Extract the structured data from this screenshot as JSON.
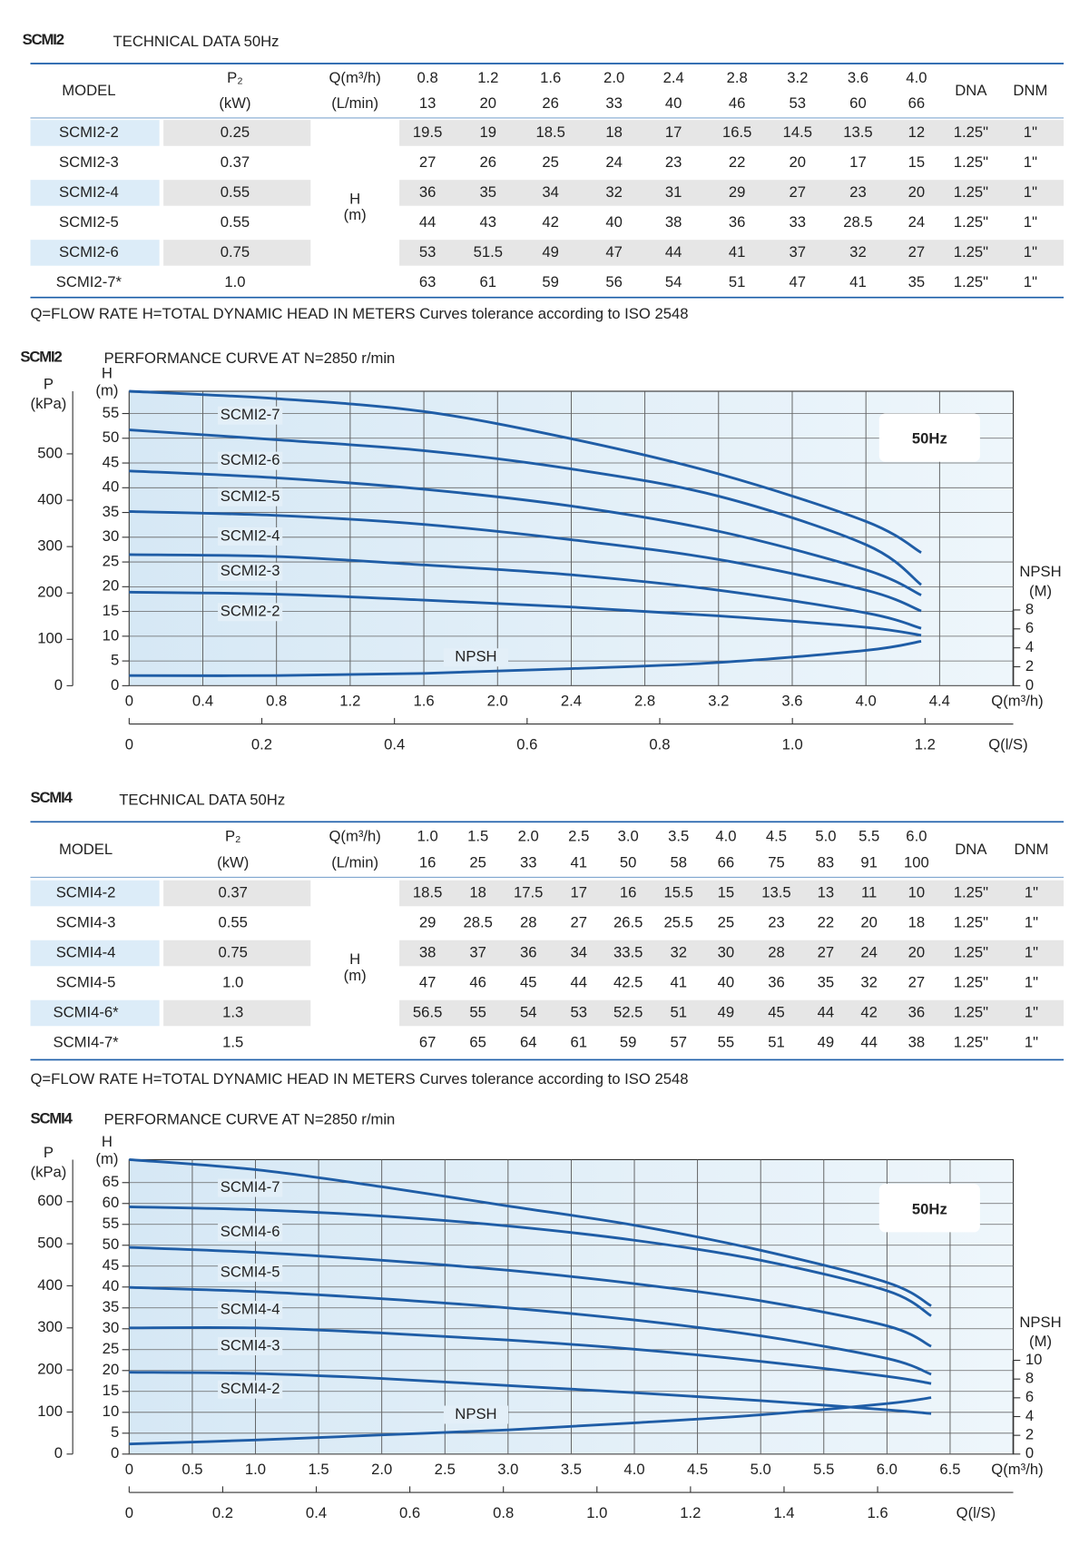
{
  "tables": [
    {
      "title": "SCMI2",
      "subtitle": "TECHNICAL DATA 50Hz",
      "headers": {
        "model": "MODEL",
        "p2": "P₂",
        "p2_unit": "(kW)",
        "q": "Q(m³/h)",
        "q_alt": "(L/min)",
        "h": "H",
        "h_unit": "(m)",
        "dna": "DNA",
        "dnm": "DNM"
      },
      "flow_m3h": [
        "0.8",
        "1.2",
        "1.6",
        "2.0",
        "2.4",
        "2.8",
        "3.2",
        "3.6",
        "4.0"
      ],
      "flow_lmin": [
        "13",
        "20",
        "26",
        "33",
        "40",
        "46",
        "53",
        "60",
        "66"
      ],
      "rows": [
        {
          "model": "SCMI2-2",
          "p2": "0.25",
          "head": [
            "19.5",
            "19",
            "18.5",
            "18",
            "17",
            "16.5",
            "14.5",
            "13.5",
            "12"
          ],
          "dna": "1.25\"",
          "dnm": "1\""
        },
        {
          "model": "SCMI2-3",
          "p2": "0.37",
          "head": [
            "27",
            "26",
            "25",
            "24",
            "23",
            "22",
            "20",
            "17",
            "15"
          ],
          "dna": "1.25\"",
          "dnm": "1\""
        },
        {
          "model": "SCMI2-4",
          "p2": "0.55",
          "head": [
            "36",
            "35",
            "34",
            "32",
            "31",
            "29",
            "27",
            "23",
            "20"
          ],
          "dna": "1.25\"",
          "dnm": "1\""
        },
        {
          "model": "SCMI2-5",
          "p2": "0.55",
          "head": [
            "44",
            "43",
            "42",
            "40",
            "38",
            "36",
            "33",
            "28.5",
            "24"
          ],
          "dna": "1.25\"",
          "dnm": "1\""
        },
        {
          "model": "SCMI2-6",
          "p2": "0.75",
          "head": [
            "53",
            "51.5",
            "49",
            "47",
            "44",
            "41",
            "37",
            "32",
            "27"
          ],
          "dna": "1.25\"",
          "dnm": "1\""
        },
        {
          "model": "SCMI2-7*",
          "p2": "1.0",
          "head": [
            "63",
            "61",
            "59",
            "56",
            "54",
            "51",
            "47",
            "41",
            "35"
          ],
          "dna": "1.25\"",
          "dnm": "1\""
        }
      ],
      "note": "Q=FLOW RATE H=TOTAL DYNAMIC HEAD IN METERS  Curves tolerance according to ISO 2548"
    },
    {
      "title": "SCMI4",
      "subtitle": "TECHNICAL DATA 50Hz",
      "headers": {
        "model": "MODEL",
        "p2": "P₂",
        "p2_unit": "(kW)",
        "q": "Q(m³/h)",
        "q_alt": "(L/min)",
        "h": "H",
        "h_unit": "(m)",
        "dna": "DNA",
        "dnm": "DNM"
      },
      "flow_m3h": [
        "1.0",
        "1.5",
        "2.0",
        "2.5",
        "3.0",
        "3.5",
        "4.0",
        "4.5",
        "5.0",
        "5.5",
        "6.0"
      ],
      "flow_lmin": [
        "16",
        "25",
        "33",
        "41",
        "50",
        "58",
        "66",
        "75",
        "83",
        "91",
        "100"
      ],
      "rows": [
        {
          "model": "SCMI4-2",
          "p2": "0.37",
          "head": [
            "18.5",
            "18",
            "17.5",
            "17",
            "16",
            "15.5",
            "15",
            "13.5",
            "13",
            "11",
            "10"
          ],
          "dna": "1.25\"",
          "dnm": "1\""
        },
        {
          "model": "SCMI4-3",
          "p2": "0.55",
          "head": [
            "29",
            "28.5",
            "28",
            "27",
            "26.5",
            "25.5",
            "25",
            "23",
            "22",
            "20",
            "18"
          ],
          "dna": "1.25\"",
          "dnm": "1\""
        },
        {
          "model": "SCMI4-4",
          "p2": "0.75",
          "head": [
            "38",
            "37",
            "36",
            "34",
            "33.5",
            "32",
            "30",
            "28",
            "27",
            "24",
            "20"
          ],
          "dna": "1.25\"",
          "dnm": "1\""
        },
        {
          "model": "SCMI4-5",
          "p2": "1.0",
          "head": [
            "47",
            "46",
            "45",
            "44",
            "42.5",
            "41",
            "40",
            "36",
            "35",
            "32",
            "27"
          ],
          "dna": "1.25\"",
          "dnm": "1\""
        },
        {
          "model": "SCMI4-6*",
          "p2": "1.3",
          "head": [
            "56.5",
            "55",
            "54",
            "53",
            "52.5",
            "51",
            "49",
            "45",
            "44",
            "42",
            "36"
          ],
          "dna": "1.25\"",
          "dnm": "1\""
        },
        {
          "model": "SCMI4-7*",
          "p2": "1.5",
          "head": [
            "67",
            "65",
            "64",
            "61",
            "59",
            "57",
            "55",
            "51",
            "49",
            "44",
            "38"
          ],
          "dna": "1.25\"",
          "dnm": "1\""
        }
      ],
      "note": "Q=FLOW RATE H=TOTAL DYNAMIC HEAD IN METERS  Curves tolerance according to ISO 2548"
    }
  ],
  "chart_data": [
    {
      "type": "line",
      "title": "SCMI2",
      "subtitle": "PERFORMANCE CURVE AT N=2850  r/min",
      "badge": "50Hz",
      "grid": true,
      "x": [
        0,
        0.8,
        1.6,
        2.4,
        3.2,
        4.0,
        4.3
      ],
      "xlim": [
        0,
        4.8
      ],
      "xticks": [
        0,
        0.4,
        0.8,
        1.2,
        1.6,
        {
          "value": 2,
          "label": "2.0"
        },
        2.4,
        2.8,
        3.2,
        3.6,
        {
          "value": 4,
          "label": "4.0"
        },
        4.4
      ],
      "xlabel": "Q(m³/h)",
      "x2lim": [
        0,
        1.333
      ],
      "x2ticks": [
        0,
        0.2,
        0.4,
        0.6,
        0.8,
        {
          "value": 1,
          "label": "1.0"
        },
        1.2
      ],
      "x2label": "Q(l/S)",
      "ylabel": "H",
      "yunit": "(m)",
      "ylim": [
        0,
        59.5
      ],
      "yticks": [
        0,
        5,
        10,
        15,
        20,
        25,
        30,
        35,
        40,
        45,
        50,
        55
      ],
      "plabel": "P",
      "punit": "(kPa)",
      "plim": [
        0,
        635
      ],
      "pticks": [
        0,
        100,
        200,
        300,
        400,
        500
      ],
      "npsh_label": "NPSH",
      "npsh_unit": "(M)",
      "npsh_lim": [
        0,
        31.1
      ],
      "npsh_ticks": [
        0,
        2,
        4,
        6,
        8
      ],
      "series": [
        {
          "name": "SCMI2-7",
          "color": "#1f5da6",
          "values": [
            59.5,
            58,
            55.4,
            49.9,
            42.8,
            33.2,
            26.9
          ]
        },
        {
          "name": "SCMI2-6",
          "color": "#1f5da6",
          "values": [
            51.7,
            49.7,
            47.5,
            43.8,
            38.3,
            28.5,
            20.4
          ]
        },
        {
          "name": "SCMI2-5",
          "color": "#1f5da6",
          "values": [
            43.4,
            42,
            39.7,
            36.3,
            31.2,
            23.4,
            18.3
          ]
        },
        {
          "name": "SCMI2-4",
          "color": "#1f5da6",
          "values": [
            35.2,
            34.4,
            32.6,
            29.5,
            25.5,
            19.3,
            15.1
          ]
        },
        {
          "name": "SCMI2-3",
          "color": "#1f5da6",
          "values": [
            26.5,
            26.1,
            24.4,
            22.4,
            19.3,
            14.7,
            11.6
          ]
        },
        {
          "name": "SCMI2-2",
          "color": "#1f5da6",
          "values": [
            18.9,
            18.5,
            17.3,
            15.9,
            14.1,
            11.8,
            10.2
          ]
        },
        {
          "name": "NPSH",
          "color": "#1f5da6",
          "axis": "npsh",
          "values": [
            1.07,
            1.07,
            1.3,
            1.8,
            2.45,
            3.73,
            4.69
          ]
        }
      ]
    },
    {
      "type": "line",
      "title": "SCMI4",
      "subtitle": "PERFORMANCE CURVE AT N=2850  r/min",
      "badge": "50Hz",
      "grid": true,
      "x": [
        0,
        1,
        2,
        3,
        4,
        5,
        6,
        6.35
      ],
      "xlim": [
        0,
        7
      ],
      "xticks": [
        0,
        0.5,
        {
          "value": 1,
          "label": "1.0"
        },
        1.5,
        {
          "value": 2,
          "label": "2.0"
        },
        2.5,
        {
          "value": 3,
          "label": "3.0"
        },
        3.5,
        {
          "value": 4,
          "label": "4.0"
        },
        4.5,
        {
          "value": 5,
          "label": "5.0"
        },
        5.5,
        {
          "value": 6,
          "label": "6.0"
        },
        6.5
      ],
      "xlabel": "Q(m³/h)",
      "x2lim": [
        0,
        1.89
      ],
      "x2ticks": [
        0,
        0.2,
        0.4,
        0.6,
        0.8,
        {
          "value": 1,
          "label": "1.0"
        },
        1.2,
        1.4,
        1.6
      ],
      "x2label": "Q(l/S)",
      "ylabel": "H",
      "yunit": "(m)",
      "ylim": [
        0,
        70.5
      ],
      "yticks": [
        0,
        5,
        10,
        15,
        20,
        25,
        30,
        35,
        40,
        45,
        50,
        55,
        60,
        65
      ],
      "plabel": "P",
      "punit": "(kPa)",
      "plim": [
        0,
        700
      ],
      "pticks": [
        0,
        100,
        200,
        300,
        400,
        500,
        600
      ],
      "npsh_label": "NPSH",
      "npsh_unit": "(M)",
      "npsh_lim": [
        0,
        31.4
      ],
      "npsh_ticks": [
        0,
        2,
        4,
        6,
        8,
        10
      ],
      "series": [
        {
          "name": "SCMI4-7",
          "color": "#1f5da6",
          "values": [
            70.5,
            68.1,
            64,
            59.4,
            54.8,
            48.8,
            41.1,
            35.5
          ]
        },
        {
          "name": "SCMI4-6",
          "color": "#1f5da6",
          "values": [
            59.2,
            58.5,
            57,
            54.6,
            51.2,
            46.4,
            39.1,
            33.1
          ]
        },
        {
          "name": "SCMI4-5",
          "color": "#1f5da6",
          "values": [
            49.5,
            48.3,
            46.4,
            44,
            40.8,
            36.7,
            30.7,
            25.8
          ]
        },
        {
          "name": "SCMI4-4",
          "color": "#1f5da6",
          "values": [
            39.9,
            38.9,
            37.2,
            35,
            32.1,
            28.3,
            22.9,
            19.1
          ]
        },
        {
          "name": "SCMI4-3",
          "color": "#1f5da6",
          "values": [
            30.2,
            30.2,
            29,
            27.3,
            25.1,
            22.2,
            18.6,
            16.9
          ]
        },
        {
          "name": "SCMI4-2",
          "color": "#1f5da6",
          "values": [
            19.6,
            19.3,
            18.1,
            16.4,
            14.7,
            12.8,
            10.6,
            9.7
          ]
        },
        {
          "name": "NPSH",
          "color": "#1f5da6",
          "axis": "npsh",
          "values": [
            1.08,
            1.5,
            2.04,
            2.58,
            3.33,
            4.19,
            5.38,
            6.02
          ]
        }
      ]
    }
  ]
}
